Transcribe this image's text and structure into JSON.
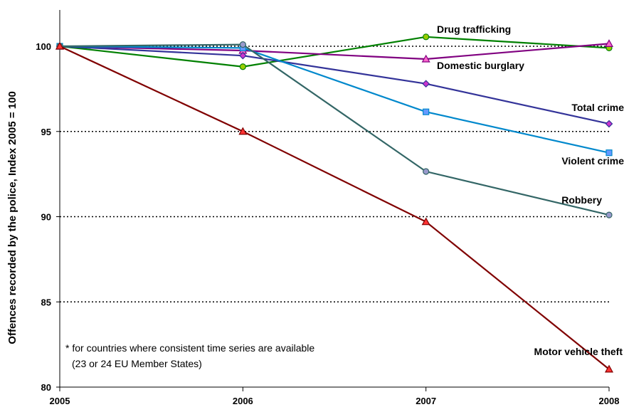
{
  "chart_data": {
    "type": "line",
    "title": "",
    "xlabel": "",
    "ylabel": "Offences recorded by the police, Index 2005 = 100",
    "x": [
      "2005",
      "2006",
      "2007",
      "2008"
    ],
    "ylim": [
      80,
      102
    ],
    "yticks": [
      80,
      85,
      90,
      95,
      100
    ],
    "gridlines": [
      85,
      90,
      95,
      100
    ],
    "grid": "horizontal dotted",
    "legend": "none (direct labels)",
    "note_lines": [
      "* for countries where consistent time series are available",
      "(23 or 24 EU Member States)"
    ],
    "series": [
      {
        "name": "Drug trafficking",
        "values": [
          100,
          98.8,
          100.55,
          99.9
        ],
        "color": "#008000",
        "marker": "circle",
        "marker_fill": "#99cc00"
      },
      {
        "name": "Domestic burglary",
        "values": [
          100,
          99.75,
          99.25,
          100.15
        ],
        "color": "#800080",
        "marker": "triangle",
        "marker_fill": "#ff66cc"
      },
      {
        "name": "Total crime",
        "values": [
          100,
          99.45,
          97.8,
          95.45
        ],
        "color": "#333399",
        "marker": "diamond",
        "marker_fill": "#cc33cc"
      },
      {
        "name": "Violent crime",
        "values": [
          100,
          99.9,
          96.15,
          93.75
        ],
        "color": "#0088cc",
        "marker": "square",
        "marker_fill": "#6699ff"
      },
      {
        "name": "Robbery",
        "values": [
          100,
          100.1,
          92.65,
          90.1
        ],
        "color": "#336666",
        "marker": "circle",
        "marker_fill": "#9999cc"
      },
      {
        "name": "Motor vehicle theft",
        "values": [
          100,
          95,
          89.7,
          81.05
        ],
        "color": "#800000",
        "marker": "triangle",
        "marker_fill": "#ff3333"
      }
    ]
  }
}
